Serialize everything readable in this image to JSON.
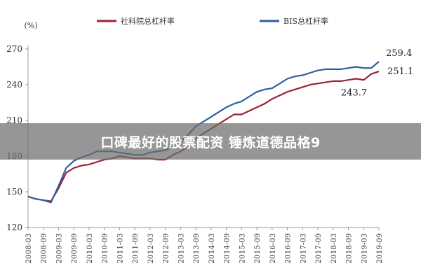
{
  "overlay_caption": "口碑最好的股票配资 锤炼道德品格9",
  "chart_data": {
    "type": "line",
    "unit_label": "(%)",
    "ylim": [
      120,
      270
    ],
    "yticks": [
      120,
      150,
      180,
      210,
      240,
      270
    ],
    "grid": false,
    "legend_position": "top",
    "x": [
      "2008-03",
      "2008-06",
      "2008-09",
      "2008-12",
      "2009-03",
      "2009-06",
      "2009-09",
      "2009-12",
      "2010-03",
      "2010-06",
      "2010-09",
      "2010-12",
      "2011-03",
      "2011-06",
      "2011-09",
      "2011-12",
      "2012-03",
      "2012-06",
      "2012-09",
      "2012-12",
      "2013-03",
      "2013-06",
      "2013-09",
      "2013-12",
      "2014-03",
      "2014-06",
      "2014-09",
      "2014-12",
      "2015-03",
      "2015-06",
      "2015-09",
      "2015-12",
      "2016-03",
      "2016-06",
      "2016-09",
      "2016-12",
      "2017-03",
      "2017-06",
      "2017-09",
      "2017-12",
      "2018-03",
      "2018-06",
      "2018-09",
      "2018-12",
      "2019-03",
      "2019-06",
      "2019-09"
    ],
    "xticklabels": [
      "2008-03",
      "2008-09",
      "2009-03",
      "2009-09",
      "2010-03",
      "2010-09",
      "2011-03",
      "2011-09",
      "2012-03",
      "2012-09",
      "2013-03",
      "2013-09",
      "2014-03",
      "2014-09",
      "2015-03",
      "2015-09",
      "2016-03",
      "2016-09",
      "2017-03",
      "2017-09",
      "2018-03",
      "2018-09",
      "2019-03",
      "2019-09"
    ],
    "series": [
      {
        "name": "社科院总杠杆率",
        "color": "#9b2335",
        "values": [
          146,
          144,
          143,
          142,
          153,
          166,
          170,
          172,
          173,
          175,
          177,
          178,
          180,
          179,
          178,
          178,
          178,
          177,
          177,
          181,
          184,
          188,
          195,
          199,
          203,
          207,
          211,
          215,
          215,
          218,
          221,
          224,
          228,
          231,
          234,
          236,
          238,
          240,
          241,
          242,
          243,
          243,
          244,
          245,
          244,
          249,
          251.1
        ]
      },
      {
        "name": "BIS总杠杆率",
        "color": "#2e5f9e",
        "values": [
          146,
          144,
          143,
          141,
          155,
          170,
          176,
          179,
          181,
          184,
          184,
          184,
          183,
          182,
          181,
          181,
          183,
          184,
          185,
          188,
          192,
          198,
          205,
          209,
          213,
          217,
          221,
          224,
          226,
          230,
          234,
          236,
          237,
          241,
          245,
          247,
          248,
          250,
          252,
          253,
          253,
          253,
          254,
          255,
          254,
          254,
          259.4
        ]
      }
    ],
    "annotations": [
      {
        "text": "259.4",
        "x": "2019-09",
        "y": 259.4
      },
      {
        "text": "251.1",
        "x": "2019-09",
        "y": 251.1
      },
      {
        "text": "243.7",
        "x": "2018-09",
        "y": 243.7
      }
    ]
  }
}
